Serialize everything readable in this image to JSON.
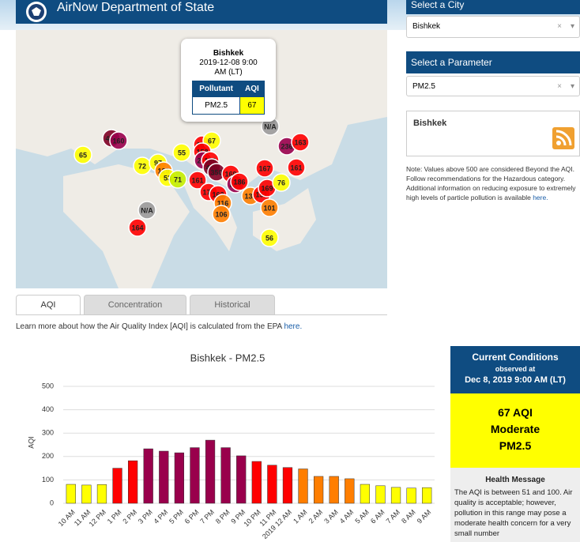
{
  "header": {
    "title": "AirNow Department of State"
  },
  "map": {
    "markers": [
      {
        "label": "65",
        "color": "#ffff00"
      },
      {
        "label": "414",
        "color": "#7e0023"
      },
      {
        "label": "160",
        "color": "#99004c"
      },
      {
        "label": "72",
        "color": "#ffff00"
      },
      {
        "label": "97",
        "color": "#ffff00"
      },
      {
        "label": "129",
        "color": "#ff7e00"
      },
      {
        "label": "53",
        "color": "#ffff00"
      },
      {
        "label": "71",
        "color": "#c8f000"
      },
      {
        "label": "55",
        "color": "#ffff00"
      },
      {
        "label": "152",
        "color": "#ff0000"
      },
      {
        "label": "67",
        "color": "#ffff00"
      },
      {
        "label": "158",
        "color": "#ff0000"
      },
      {
        "label": "218",
        "color": "#99004c"
      },
      {
        "label": "189",
        "color": "#ff0000"
      },
      {
        "label": "486",
        "color": "#7e0023"
      },
      {
        "label": "350",
        "color": "#7e0023"
      },
      {
        "label": "169",
        "color": "#ff0000"
      },
      {
        "label": "161",
        "color": "#ff0000"
      },
      {
        "label": "214",
        "color": "#99004c"
      },
      {
        "label": "186",
        "color": "#ff0000"
      },
      {
        "label": "170",
        "color": "#ff0000"
      },
      {
        "label": "163",
        "color": "#ff0000"
      },
      {
        "label": "116",
        "color": "#ff7e00"
      },
      {
        "label": "106",
        "color": "#ff7e00"
      },
      {
        "label": "132",
        "color": "#ff7e00"
      },
      {
        "label": "151",
        "color": "#ff0000"
      },
      {
        "label": "169",
        "color": "#ff0000"
      },
      {
        "label": "167",
        "color": "#ff0000"
      },
      {
        "label": "76",
        "color": "#ffff00"
      },
      {
        "label": "101",
        "color": "#ff7e00"
      },
      {
        "label": "236",
        "color": "#99004c"
      },
      {
        "label": "163",
        "color": "#ff0000"
      },
      {
        "label": "161",
        "color": "#ff0000"
      },
      {
        "label": "N/A",
        "color": "#9a9a9a"
      },
      {
        "label": "N/A",
        "color": "#9a9a9a"
      },
      {
        "label": "164",
        "color": "#ff0000"
      },
      {
        "label": "56",
        "color": "#ffff00"
      }
    ]
  },
  "popup": {
    "city": "Bishkek",
    "time": "2019-12-08 9:00 AM (LT)",
    "headers": [
      "Pollutant",
      "AQI"
    ],
    "row": [
      "PM2.5",
      "67"
    ]
  },
  "sidebar": {
    "city_label": "Select a City",
    "city": "Bishkek",
    "param_label": "Select a Parameter",
    "param": "PM2.5",
    "clear": "×",
    "box_title": "Bishkek",
    "note": "Note: Values above 500 are considered Beyond the AQI. Follow recommendations for the Hazardous category. Additional information on reducing exposure to extremely high levels of particle pollution is available",
    "note_link": "here."
  },
  "tabs": [
    "AQI",
    "Concentration",
    "Historical"
  ],
  "learn_more": {
    "text": "Learn more about how the Air Quality Index [AQI] is calculated from the EPA",
    "link": "here."
  },
  "chart_data": {
    "type": "bar",
    "title": "Bishkek - PM2.5",
    "y_label": "AQI",
    "categories": [
      "10 AM",
      "11 AM",
      "12 PM",
      "1 PM",
      "2 PM",
      "3 PM",
      "4 PM",
      "5 PM",
      "6 PM",
      "7 PM",
      "8 PM",
      "9 PM",
      "10 PM",
      "11 PM",
      "2019 12 AM",
      "1 AM",
      "2 AM",
      "3 AM",
      "4 AM",
      "5 AM",
      "6 AM",
      "7 AM",
      "8 AM",
      "9 AM"
    ],
    "values": [
      81,
      78,
      80,
      150,
      182,
      233,
      223,
      216,
      238,
      270,
      238,
      203,
      179,
      163,
      153,
      147,
      115,
      115,
      105,
      81,
      75,
      68,
      65,
      67
    ],
    "colors": [
      "#ffff00",
      "#ffff00",
      "#ffff00",
      "#ff0000",
      "#ff0000",
      "#99004c",
      "#99004c",
      "#99004c",
      "#99004c",
      "#99004c",
      "#99004c",
      "#99004c",
      "#ff0000",
      "#ff0000",
      "#ff0000",
      "#ff7e00",
      "#ff7e00",
      "#ff7e00",
      "#ff7e00",
      "#ffff00",
      "#ffff00",
      "#ffff00",
      "#ffff00",
      "#ffff00"
    ],
    "ylim": [
      0,
      500
    ],
    "yticks": [
      0,
      100,
      200,
      300,
      400,
      500
    ],
    "grid": true
  },
  "conditions": {
    "title": "Current Conditions",
    "observed": "observed at",
    "time": "Dec 8, 2019 9:00 AM (LT)",
    "aqi": "67 AQI",
    "category": "Moderate",
    "pollutant": "PM2.5",
    "health_title": "Health Message",
    "health_text": "The AQI is between 51 and 100. Air quality is acceptable; however, pollution in this range may pose a moderate health concern for a very small number"
  }
}
